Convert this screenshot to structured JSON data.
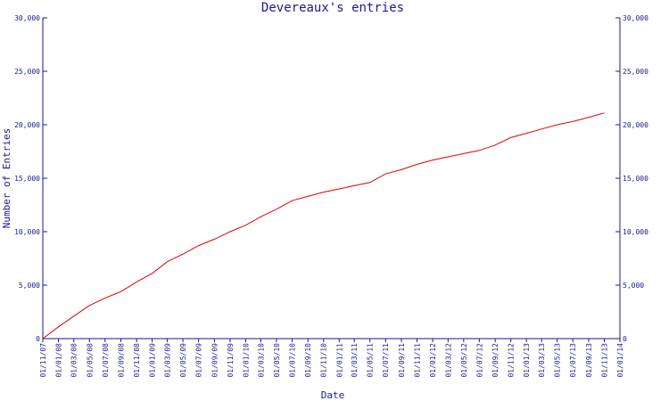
{
  "chart_data": {
    "type": "line",
    "title": "Devereaux's entries",
    "xlabel": "Date",
    "ylabel": "Number of Entries",
    "ylim": [
      0,
      30000
    ],
    "y_ticks": [
      0,
      5000,
      10000,
      15000,
      20000,
      25000,
      30000
    ],
    "y_tick_labels": [
      "0",
      "5,000",
      "10,000",
      "15,000",
      "20,000",
      "25,000",
      "30,000"
    ],
    "x_range": [
      "2007-11-01",
      "2014-01-01"
    ],
    "x_tick_labels": [
      "01/11/07",
      "01/01/08",
      "01/03/08",
      "01/05/08",
      "01/07/08",
      "01/09/08",
      "01/11/08",
      "01/01/09",
      "01/03/09",
      "01/05/09",
      "01/07/09",
      "01/09/09",
      "01/11/09",
      "01/01/10",
      "01/03/10",
      "01/05/10",
      "01/07/10",
      "01/09/10",
      "01/11/10",
      "01/01/11",
      "01/03/11",
      "01/05/11",
      "01/07/11",
      "01/09/11",
      "01/11/11",
      "01/01/12",
      "01/03/12",
      "01/05/12",
      "01/07/12",
      "01/09/12",
      "01/11/12",
      "01/01/13",
      "01/03/13",
      "01/05/13",
      "01/07/13",
      "01/09/13",
      "01/11/13",
      "01/01/14"
    ],
    "series": [
      {
        "color": "#e00000",
        "x": [
          "2007-11-01",
          "2008-01-01",
          "2008-03-01",
          "2008-05-01",
          "2008-07-01",
          "2008-09-01",
          "2008-11-01",
          "2009-01-01",
          "2009-03-01",
          "2009-05-01",
          "2009-07-01",
          "2009-09-01",
          "2009-11-01",
          "2010-01-01",
          "2010-03-01",
          "2010-05-01",
          "2010-07-01",
          "2010-09-01",
          "2010-11-01",
          "2011-01-01",
          "2011-03-01",
          "2011-05-01",
          "2011-07-01",
          "2011-09-01",
          "2011-11-01",
          "2012-01-01",
          "2012-03-01",
          "2012-05-01",
          "2012-07-01",
          "2012-09-01",
          "2012-11-01",
          "2013-01-01",
          "2013-03-01",
          "2013-05-01",
          "2013-07-01",
          "2013-09-01",
          "2013-11-01"
        ],
        "values": [
          0,
          1100,
          2100,
          3100,
          3800,
          4400,
          5300,
          6100,
          7200,
          7900,
          8700,
          9300,
          10000,
          10600,
          11400,
          12100,
          12900,
          13300,
          13700,
          14000,
          14300,
          14600,
          15400,
          15800,
          16300,
          16700,
          17000,
          17300,
          17600,
          18100,
          18800,
          19200,
          19600,
          20000,
          20300,
          20700,
          21100
        ]
      }
    ],
    "grid": false,
    "legend": "none"
  }
}
